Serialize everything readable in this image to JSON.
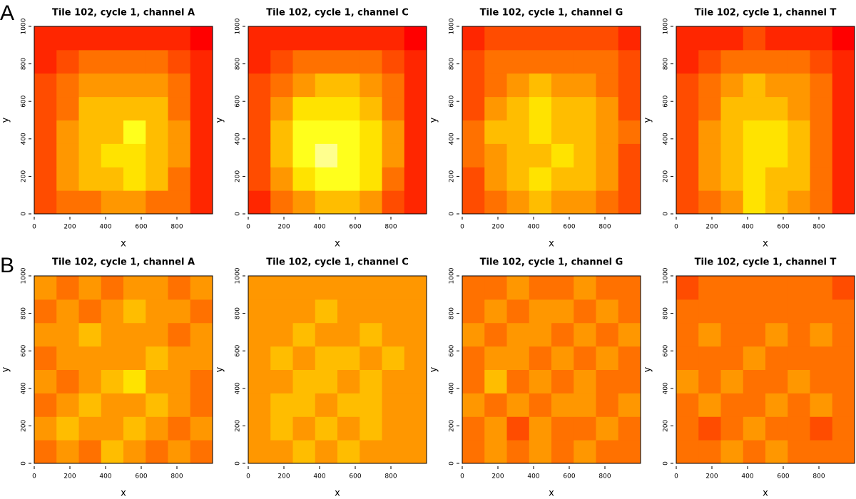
{
  "panel_labels": [
    "A",
    "B"
  ],
  "chart_data": [
    {
      "type": "heatmap",
      "title": "Tile 102, cycle 1, channel A",
      "x_label": "x",
      "y_label": "y",
      "xlim": [
        0,
        1000
      ],
      "ylim": [
        0,
        1000
      ],
      "xticks": [
        0,
        200,
        400,
        600,
        800
      ],
      "yticks": [
        0,
        200,
        400,
        600,
        800,
        1000
      ],
      "z": [
        [
          2,
          3,
          3,
          4,
          4,
          3,
          3,
          1
        ],
        [
          2,
          4,
          5,
          5,
          6,
          5,
          3,
          1
        ],
        [
          2,
          4,
          5,
          6,
          6,
          5,
          4,
          1
        ],
        [
          2,
          4,
          5,
          5,
          7,
          5,
          4,
          1
        ],
        [
          2,
          3,
          5,
          5,
          5,
          5,
          3,
          1
        ],
        [
          2,
          3,
          4,
          4,
          4,
          4,
          3,
          1
        ],
        [
          1,
          2,
          3,
          3,
          3,
          3,
          2,
          1
        ],
        [
          1,
          1,
          1,
          1,
          1,
          1,
          1,
          0
        ]
      ]
    },
    {
      "type": "heatmap",
      "title": "Tile 102, cycle 1, channel C",
      "x_label": "x",
      "y_label": "y",
      "xlim": [
        0,
        1000
      ],
      "ylim": [
        0,
        1000
      ],
      "xticks": [
        0,
        200,
        400,
        600,
        800
      ],
      "yticks": [
        0,
        200,
        400,
        600,
        800,
        1000
      ],
      "z": [
        [
          1,
          3,
          4,
          5,
          5,
          4,
          2,
          1
        ],
        [
          2,
          4,
          6,
          7,
          7,
          6,
          3,
          1
        ],
        [
          2,
          5,
          7,
          8,
          7,
          6,
          4,
          1
        ],
        [
          2,
          5,
          7,
          7,
          7,
          6,
          4,
          1
        ],
        [
          2,
          4,
          6,
          6,
          6,
          5,
          3,
          1
        ],
        [
          2,
          3,
          4,
          5,
          5,
          4,
          3,
          1
        ],
        [
          1,
          2,
          3,
          3,
          3,
          3,
          2,
          1
        ],
        [
          1,
          1,
          1,
          1,
          1,
          1,
          1,
          0
        ]
      ]
    },
    {
      "type": "heatmap",
      "title": "Tile 102, cycle 1, channel G",
      "x_label": "x",
      "y_label": "y",
      "xlim": [
        0,
        1000
      ],
      "ylim": [
        0,
        1000
      ],
      "xticks": [
        0,
        200,
        400,
        600,
        800
      ],
      "yticks": [
        0,
        200,
        400,
        600,
        800,
        1000
      ],
      "z": [
        [
          2,
          3,
          4,
          5,
          4,
          4,
          3,
          2
        ],
        [
          2,
          4,
          5,
          6,
          5,
          5,
          4,
          2
        ],
        [
          3,
          4,
          5,
          5,
          6,
          5,
          4,
          2
        ],
        [
          3,
          5,
          5,
          6,
          5,
          5,
          4,
          3
        ],
        [
          2,
          4,
          5,
          6,
          5,
          5,
          4,
          2
        ],
        [
          2,
          3,
          4,
          5,
          4,
          4,
          3,
          2
        ],
        [
          2,
          3,
          3,
          3,
          3,
          3,
          3,
          2
        ],
        [
          1,
          2,
          2,
          2,
          2,
          2,
          2,
          1
        ]
      ]
    },
    {
      "type": "heatmap",
      "title": "Tile 102, cycle 1, channel T",
      "x_label": "x",
      "y_label": "y",
      "xlim": [
        0,
        1000
      ],
      "ylim": [
        0,
        1000
      ],
      "xticks": [
        0,
        200,
        400,
        600,
        800
      ],
      "yticks": [
        0,
        200,
        400,
        600,
        800,
        1000
      ],
      "z": [
        [
          2,
          3,
          4,
          6,
          5,
          4,
          3,
          1
        ],
        [
          2,
          4,
          5,
          6,
          5,
          5,
          3,
          1
        ],
        [
          2,
          4,
          5,
          6,
          6,
          5,
          3,
          1
        ],
        [
          2,
          4,
          5,
          6,
          6,
          5,
          3,
          1
        ],
        [
          2,
          3,
          5,
          5,
          5,
          4,
          3,
          1
        ],
        [
          2,
          3,
          4,
          5,
          4,
          4,
          3,
          1
        ],
        [
          1,
          2,
          3,
          3,
          3,
          3,
          2,
          1
        ],
        [
          1,
          1,
          1,
          2,
          1,
          1,
          1,
          0
        ]
      ]
    },
    {
      "type": "heatmap",
      "title": "Tile 102, cycle 1, channel A",
      "x_label": "x",
      "y_label": "y",
      "xlim": [
        0,
        1000
      ],
      "ylim": [
        0,
        1000
      ],
      "xticks": [
        0,
        200,
        400,
        600,
        800
      ],
      "yticks": [
        0,
        200,
        400,
        600,
        800,
        1000
      ],
      "z": [
        [
          3,
          4,
          3,
          5,
          4,
          3,
          4,
          3
        ],
        [
          4,
          5,
          4,
          4,
          5,
          4,
          3,
          4
        ],
        [
          3,
          4,
          5,
          4,
          4,
          5,
          4,
          3
        ],
        [
          4,
          3,
          4,
          5,
          6,
          4,
          4,
          3
        ],
        [
          3,
          4,
          4,
          4,
          4,
          5,
          4,
          4
        ],
        [
          4,
          4,
          5,
          4,
          4,
          4,
          3,
          4
        ],
        [
          3,
          4,
          3,
          4,
          5,
          4,
          4,
          3
        ],
        [
          4,
          3,
          4,
          3,
          4,
          4,
          3,
          4
        ]
      ]
    },
    {
      "type": "heatmap",
      "title": "Tile 102, cycle 1, channel C",
      "x_label": "x",
      "y_label": "y",
      "xlim": [
        0,
        1000
      ],
      "ylim": [
        0,
        1000
      ],
      "xticks": [
        0,
        200,
        400,
        600,
        800
      ],
      "yticks": [
        0,
        200,
        400,
        600,
        800,
        1000
      ],
      "z": [
        [
          4,
          4,
          5,
          4,
          5,
          4,
          4,
          4
        ],
        [
          4,
          5,
          4,
          5,
          4,
          5,
          4,
          4
        ],
        [
          4,
          5,
          5,
          4,
          5,
          5,
          4,
          4
        ],
        [
          4,
          4,
          5,
          5,
          4,
          5,
          4,
          4
        ],
        [
          4,
          5,
          4,
          5,
          5,
          4,
          5,
          4
        ],
        [
          4,
          4,
          5,
          4,
          4,
          5,
          4,
          4
        ],
        [
          4,
          4,
          4,
          5,
          4,
          4,
          4,
          4
        ],
        [
          4,
          4,
          4,
          4,
          4,
          4,
          4,
          4
        ]
      ]
    },
    {
      "type": "heatmap",
      "title": "Tile 102, cycle 1, channel G",
      "x_label": "x",
      "y_label": "y",
      "xlim": [
        0,
        1000
      ],
      "ylim": [
        0,
        1000
      ],
      "xticks": [
        0,
        200,
        400,
        600,
        800
      ],
      "yticks": [
        0,
        200,
        400,
        600,
        800,
        1000
      ],
      "z": [
        [
          3,
          4,
          3,
          4,
          3,
          4,
          3,
          3
        ],
        [
          3,
          4,
          2,
          4,
          3,
          3,
          4,
          3
        ],
        [
          4,
          3,
          4,
          3,
          4,
          4,
          3,
          4
        ],
        [
          3,
          5,
          3,
          4,
          3,
          4,
          3,
          3
        ],
        [
          3,
          4,
          4,
          3,
          4,
          3,
          4,
          3
        ],
        [
          4,
          3,
          4,
          4,
          3,
          4,
          3,
          4
        ],
        [
          3,
          4,
          3,
          4,
          4,
          3,
          4,
          3
        ],
        [
          3,
          3,
          4,
          3,
          3,
          4,
          3,
          3
        ]
      ]
    },
    {
      "type": "heatmap",
      "title": "Tile 102, cycle 1, channel T",
      "x_label": "x",
      "y_label": "y",
      "xlim": [
        0,
        1000
      ],
      "ylim": [
        0,
        1000
      ],
      "xticks": [
        0,
        200,
        400,
        600,
        800
      ],
      "yticks": [
        0,
        200,
        400,
        600,
        800,
        1000
      ],
      "z": [
        [
          3,
          3,
          4,
          3,
          4,
          3,
          3,
          3
        ],
        [
          3,
          2,
          3,
          4,
          3,
          3,
          2,
          3
        ],
        [
          3,
          4,
          3,
          3,
          4,
          3,
          4,
          3
        ],
        [
          4,
          3,
          4,
          3,
          3,
          4,
          3,
          3
        ],
        [
          3,
          3,
          3,
          4,
          3,
          3,
          3,
          3
        ],
        [
          3,
          4,
          3,
          3,
          4,
          3,
          4,
          3
        ],
        [
          3,
          3,
          3,
          3,
          3,
          3,
          3,
          3
        ],
        [
          2,
          3,
          3,
          3,
          3,
          3,
          3,
          2
        ]
      ]
    }
  ]
}
